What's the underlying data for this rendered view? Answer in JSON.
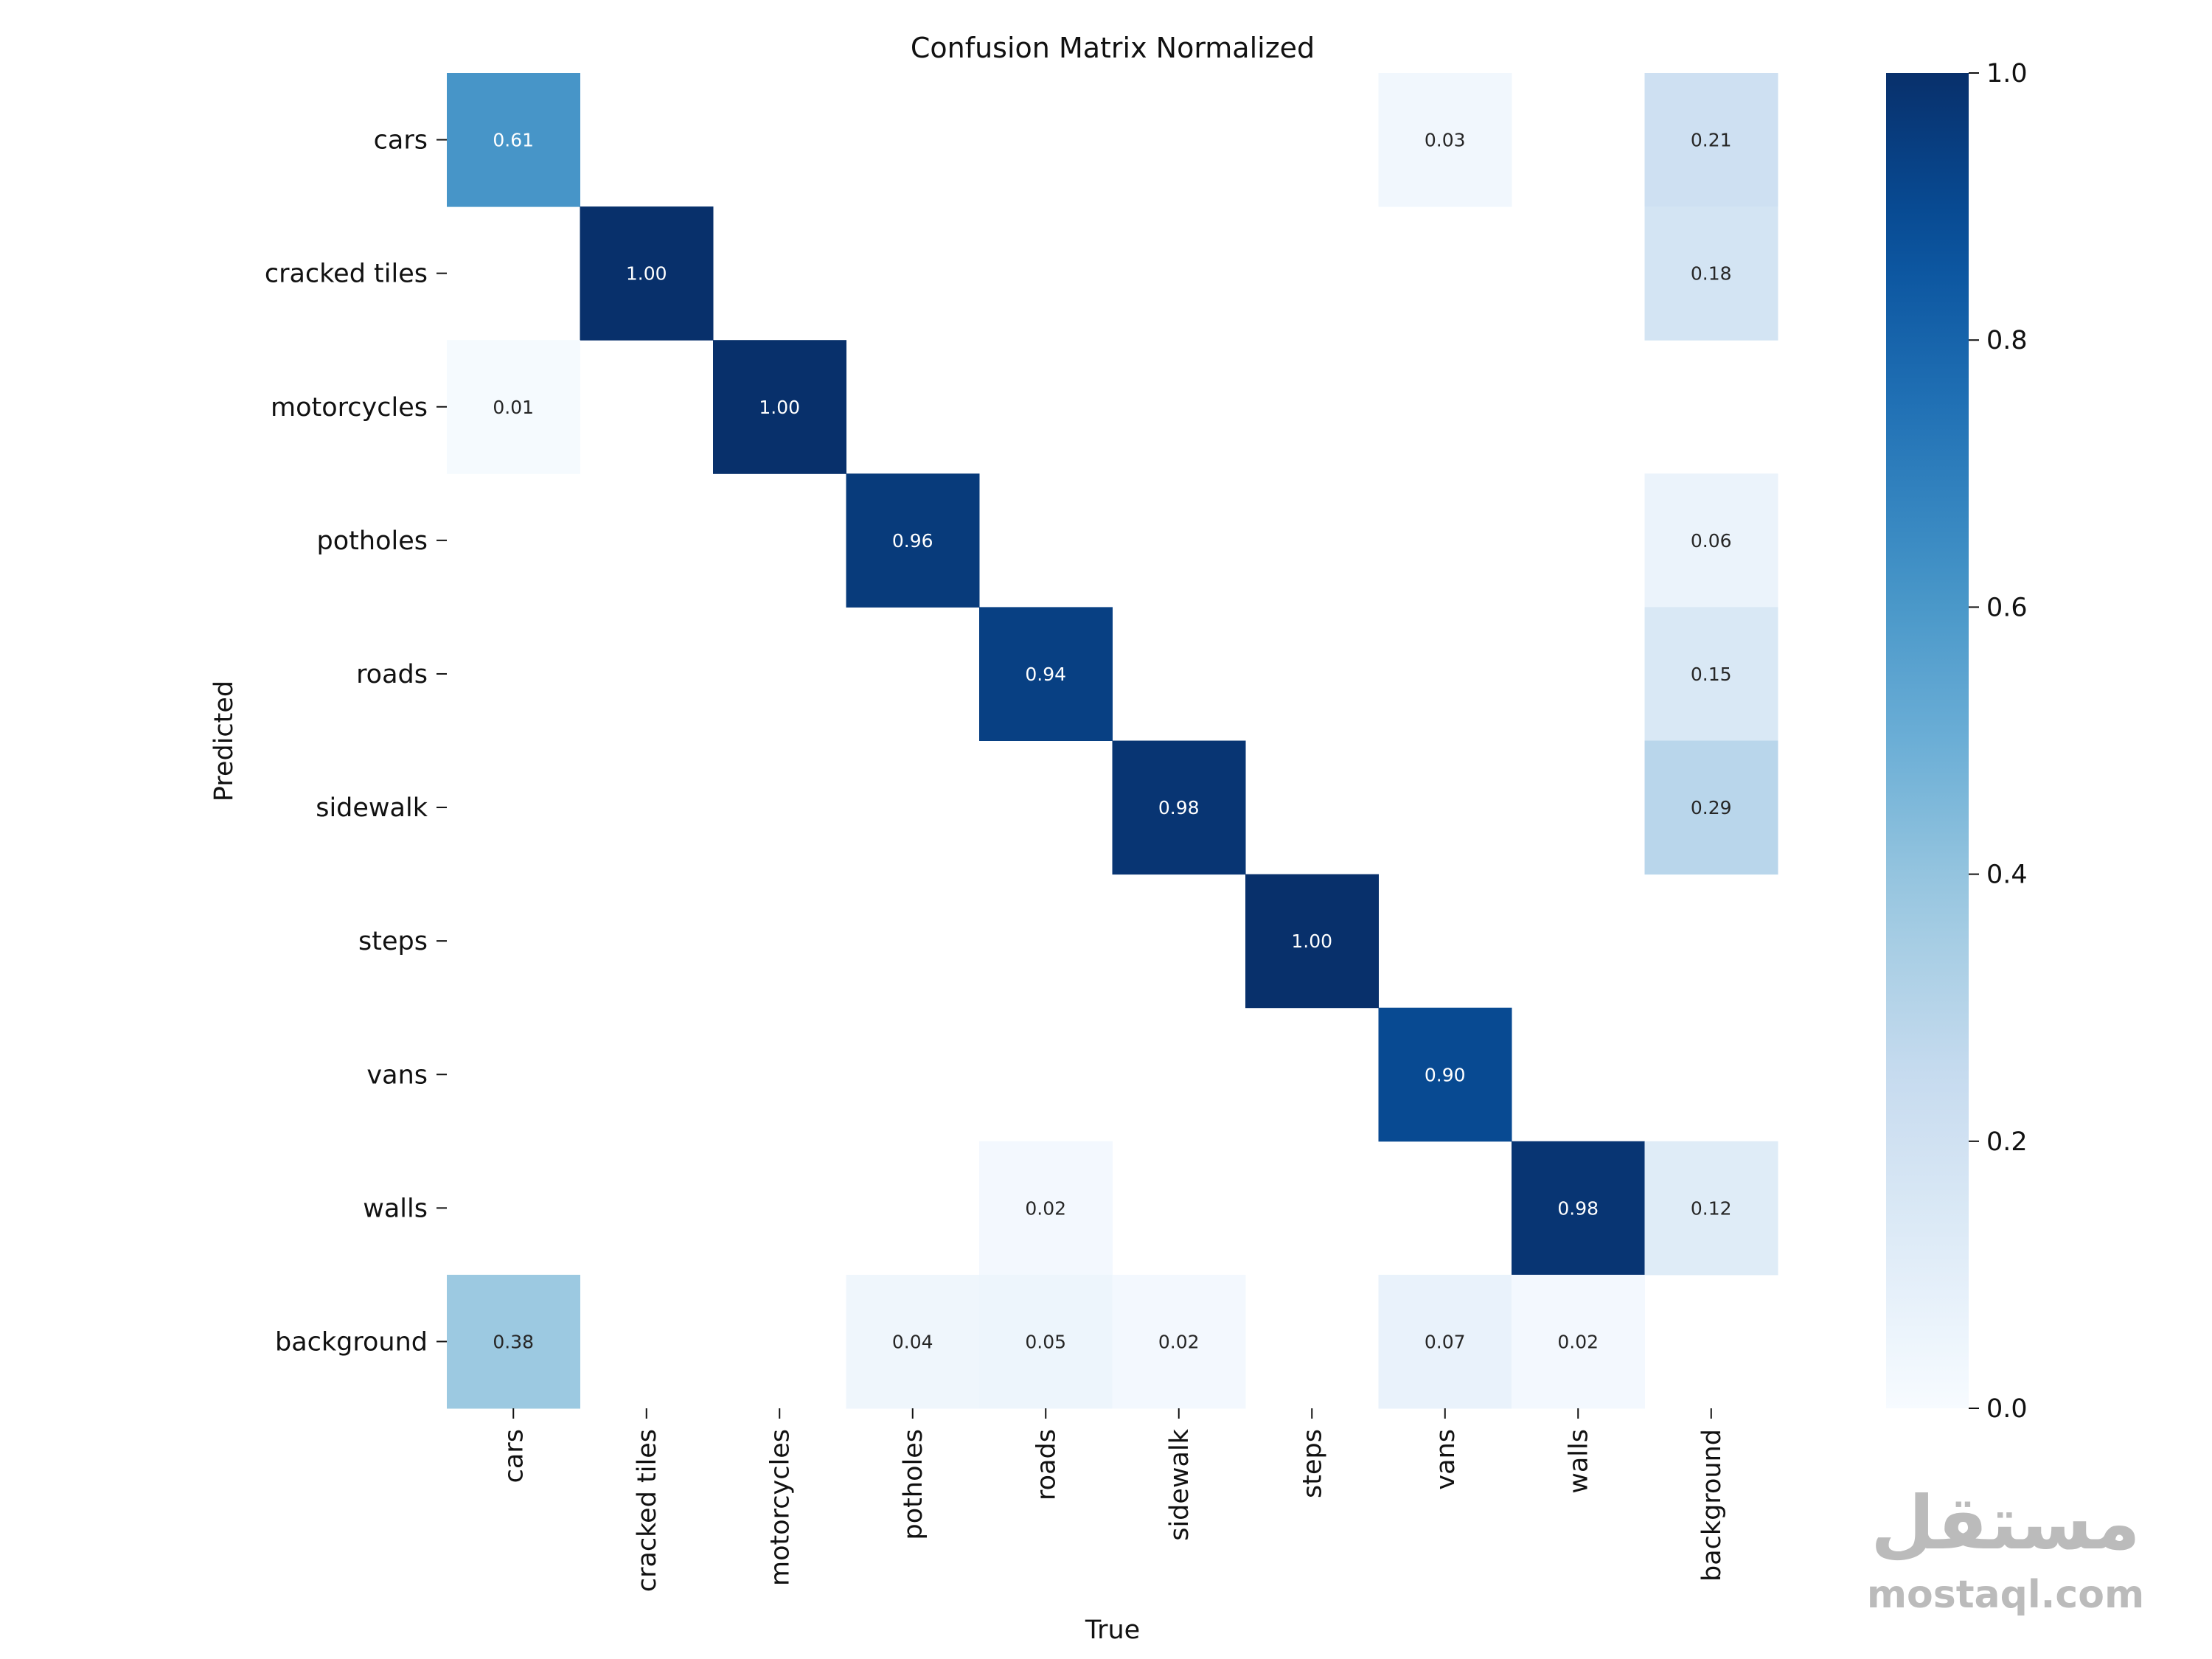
{
  "chart_data": {
    "type": "heatmap",
    "title": "Confusion Matrix Normalized",
    "xlabel": "True",
    "ylabel": "Predicted",
    "x_categories": [
      "cars",
      "cracked tiles",
      "motorcycles",
      "potholes",
      "roads",
      "sidewalk",
      "steps",
      "vans",
      "walls",
      "background"
    ],
    "y_categories": [
      "cars",
      "cracked tiles",
      "motorcycles",
      "potholes",
      "roads",
      "sidewalk",
      "steps",
      "vans",
      "walls",
      "background"
    ],
    "values": [
      [
        0.61,
        0,
        0,
        0,
        0,
        0,
        0,
        0.03,
        0,
        0.21
      ],
      [
        0,
        1.0,
        0,
        0,
        0,
        0,
        0,
        0,
        0,
        0.18
      ],
      [
        0.01,
        0,
        1.0,
        0,
        0,
        0,
        0,
        0,
        0,
        0
      ],
      [
        0,
        0,
        0,
        0.96,
        0,
        0,
        0,
        0,
        0,
        0.06
      ],
      [
        0,
        0,
        0,
        0,
        0.94,
        0,
        0,
        0,
        0,
        0.15
      ],
      [
        0,
        0,
        0,
        0,
        0,
        0.98,
        0,
        0,
        0,
        0.29
      ],
      [
        0,
        0,
        0,
        0,
        0,
        0,
        1.0,
        0,
        0,
        0
      ],
      [
        0,
        0,
        0,
        0,
        0,
        0,
        0,
        0.9,
        0,
        0
      ],
      [
        0,
        0,
        0,
        0,
        0.02,
        0,
        0,
        0,
        0.98,
        0.12
      ],
      [
        0.38,
        0,
        0,
        0.04,
        0.05,
        0.02,
        0,
        0.07,
        0.02,
        0
      ]
    ],
    "zero_cells_blank": true,
    "value_format": "2 decimals",
    "colormap": "Blues",
    "colorbar": {
      "range": [
        0.0,
        1.0
      ],
      "ticks": [
        "0.0",
        "0.2",
        "0.4",
        "0.6",
        "0.8",
        "1.0"
      ]
    },
    "grid": false
  },
  "watermark": {
    "arabic": "مستقل",
    "latin": "mostaql.com"
  }
}
